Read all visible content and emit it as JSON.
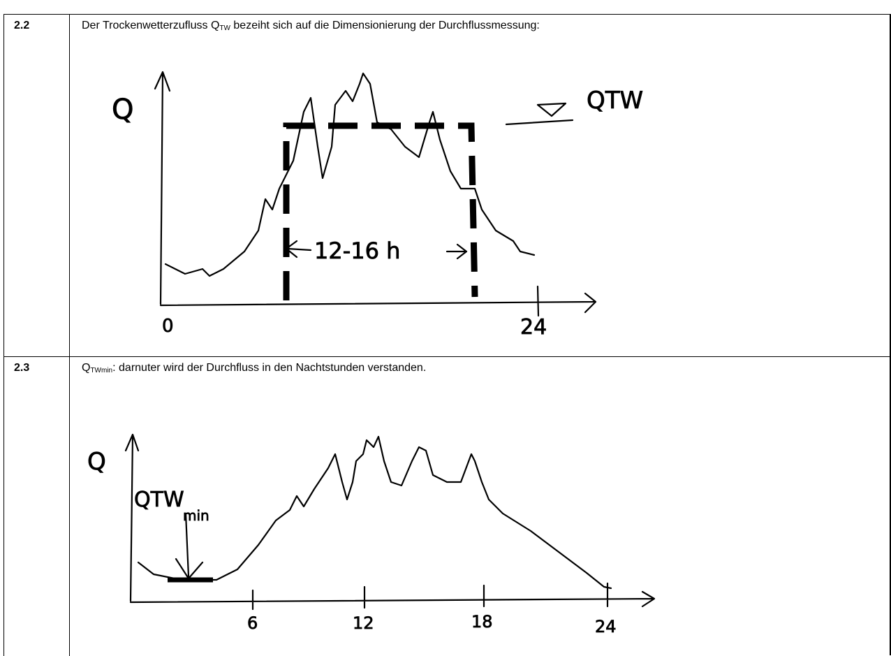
{
  "rows": [
    {
      "number": "2.2",
      "text_before": "Der Trockenwetterzufluss Q",
      "subscript": "TW",
      "text_after": " bezeiht sich auf die Dimensionierung der Durchflussmessung:",
      "sketch": {
        "y_label": "Q",
        "origin": "0",
        "end": "24",
        "span": "12-16 h",
        "level_label": "QTW"
      }
    },
    {
      "number": "2.3",
      "text_before": "Q",
      "subscript": "TWmin",
      "text_after": ": darnuter wird der Durchfluss in den Nachtstunden verstanden.",
      "sketch": {
        "y_label": "Q",
        "min_label": "QTW",
        "min_sub": "min",
        "ticks": [
          "6",
          "12",
          "18",
          "24"
        ]
      }
    }
  ]
}
